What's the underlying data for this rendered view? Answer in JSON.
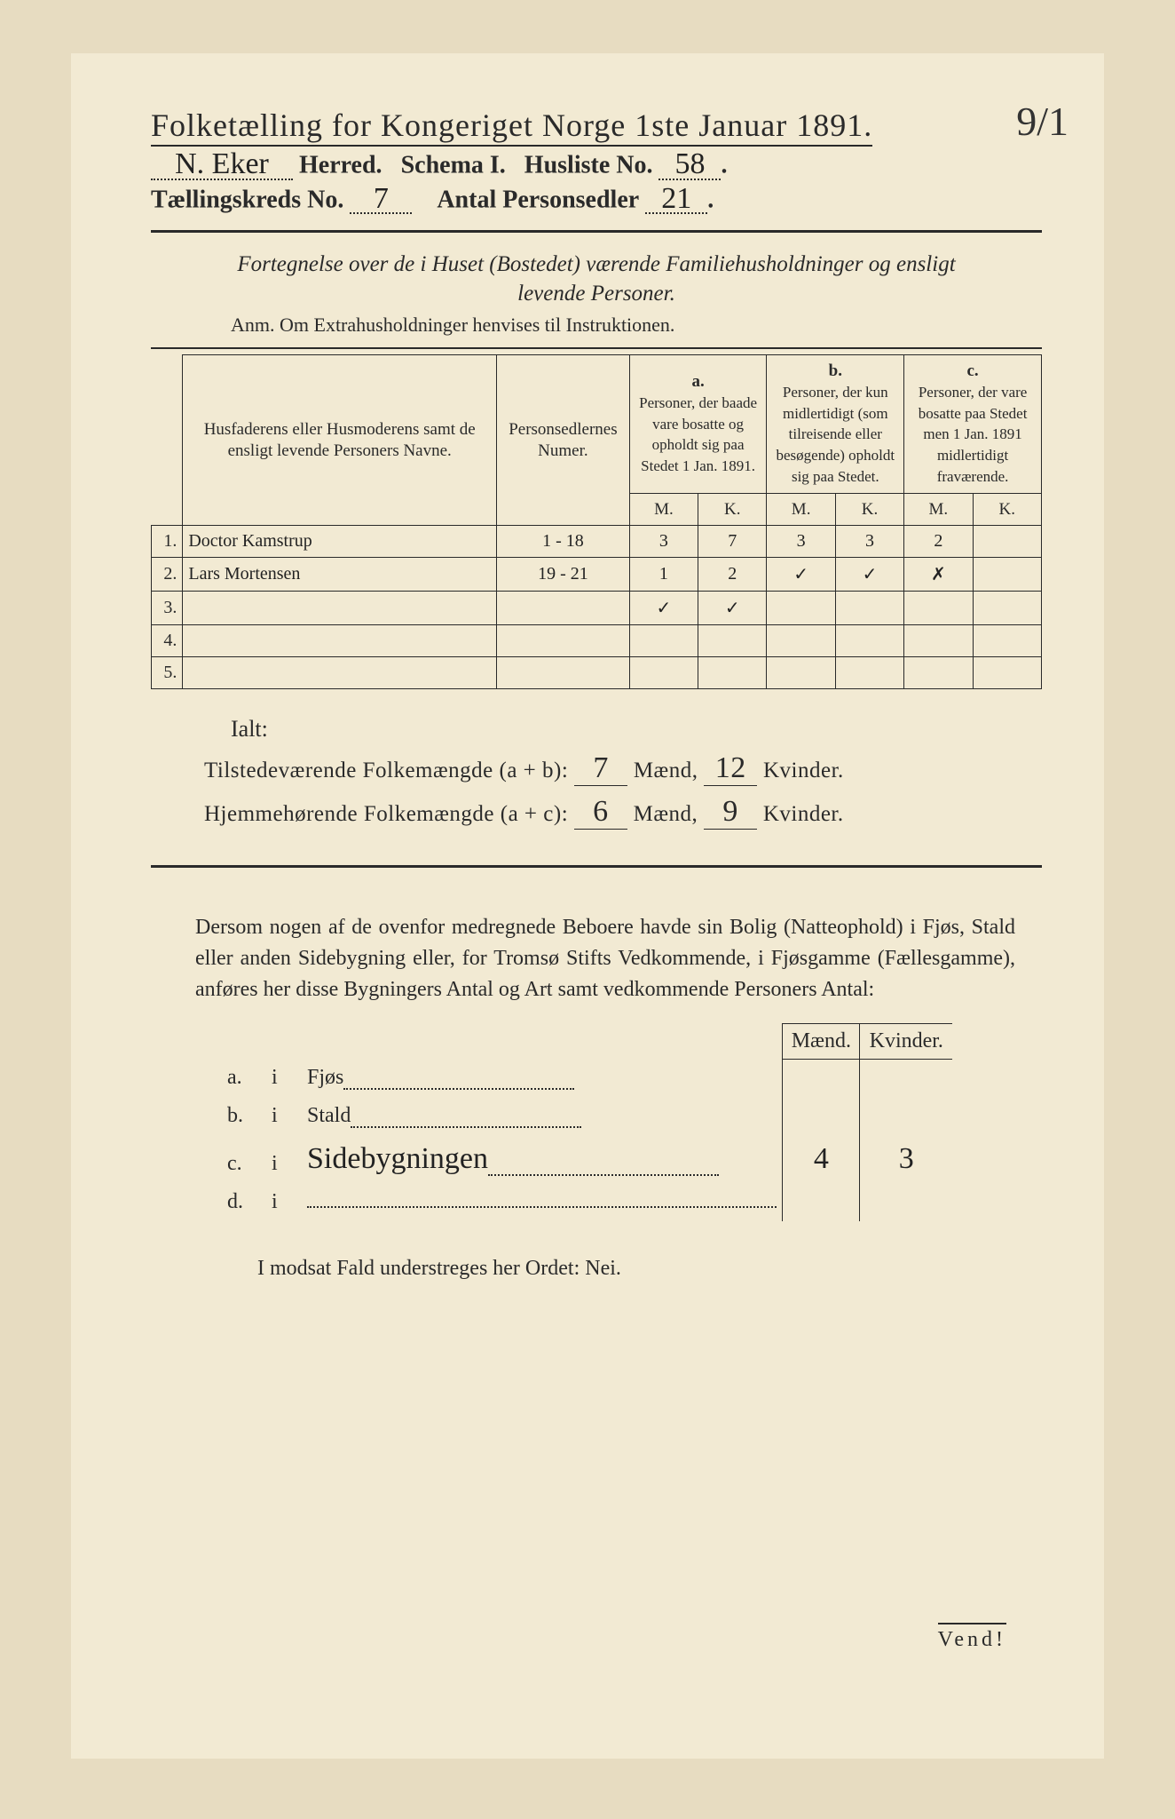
{
  "page": {
    "background_outer": "#e7dcc1",
    "background_inner": "#f2ead3",
    "text_color": "#2a2a2a"
  },
  "header": {
    "title": "Folketælling for Kongeriget Norge 1ste Januar 1891.",
    "top_right_mark": "9/1",
    "herred_value": "N. Eker",
    "herred_label": "Herred.",
    "schema_label": "Schema I.",
    "husliste_label": "Husliste No.",
    "husliste_value": "58",
    "kreds_label": "Tællingskreds No.",
    "kreds_value": "7",
    "personsedler_label": "Antal Personsedler",
    "personsedler_value": "21"
  },
  "subhead": {
    "line1": "Fortegnelse over de i Huset (Bostedet) værende Familiehusholdninger og ensligt",
    "line2": "levende Personer.",
    "anm": "Anm. Om Extrahusholdninger henvises til Instruktionen."
  },
  "table": {
    "headers": {
      "names": "Husfaderens eller Husmoderens samt de ensligt levende Personers Navne.",
      "numer": "Personsedlernes Numer.",
      "a_label": "a.",
      "a_text": "Personer, der baade vare bosatte og opholdt sig paa Stedet 1 Jan. 1891.",
      "b_label": "b.",
      "b_text": "Personer, der kun midlertidigt (som tilreisende eller besøgende) opholdt sig paa Stedet.",
      "c_label": "c.",
      "c_text": "Personer, der vare bosatte paa Stedet men 1 Jan. 1891 midlertidigt fraværende.",
      "m": "M.",
      "k": "K."
    },
    "rows": [
      {
        "n": "1.",
        "name": "Doctor Kamstrup",
        "numer": "1 - 18",
        "a_m": "3",
        "a_k": "7",
        "b_m": "3",
        "b_k": "3",
        "c_m": "2",
        "c_k": ""
      },
      {
        "n": "2.",
        "name": "Lars Mortensen",
        "numer": "19 - 21",
        "a_m": "1",
        "a_k": "2",
        "b_m": "✓",
        "b_k": "✓",
        "c_m": "✗",
        "c_k": ""
      },
      {
        "n": "3.",
        "name": "",
        "numer": "",
        "a_m": "✓",
        "a_k": "✓",
        "b_m": "",
        "b_k": "",
        "c_m": "",
        "c_k": ""
      },
      {
        "n": "4.",
        "name": "",
        "numer": "",
        "a_m": "",
        "a_k": "",
        "b_m": "",
        "b_k": "",
        "c_m": "",
        "c_k": ""
      },
      {
        "n": "5.",
        "name": "",
        "numer": "",
        "a_m": "",
        "a_k": "",
        "b_m": "",
        "b_k": "",
        "c_m": "",
        "c_k": ""
      }
    ]
  },
  "summary": {
    "ialt": "Ialt:",
    "line1_prefix": "Tilstedeværende Folkemængde (a + b):",
    "line1_m": "7",
    "line1_mlabel": "Mænd,",
    "line1_k": "12",
    "line1_klabel": "Kvinder.",
    "line2_prefix": "Hjemmehørende Folkemængde (a + c):",
    "line2_m": "6",
    "line2_mlabel": "Mænd,",
    "line2_k": "9",
    "line2_klabel": "Kvinder."
  },
  "buildings": {
    "para": "Dersom nogen af de ovenfor medregnede Beboere havde sin Bolig (Natteophold) i Fjøs, Stald eller anden Sidebygning eller, for Tromsø Stifts Vedkommende, i Fjøsgamme (Fællesgamme), anføres her disse Bygningers Antal og Art samt vedkommende Personers Antal:",
    "col_m": "Mænd.",
    "col_k": "Kvinder.",
    "rows": [
      {
        "letter": "a.",
        "i": "i",
        "label": "Fjøs",
        "m": "",
        "k": ""
      },
      {
        "letter": "b.",
        "i": "i",
        "label": "Stald",
        "m": "",
        "k": ""
      },
      {
        "letter": "c.",
        "i": "i",
        "label": "Sidebygningen",
        "m": "4",
        "k": "3"
      },
      {
        "letter": "d.",
        "i": "i",
        "label": "",
        "m": "",
        "k": ""
      }
    ]
  },
  "footer": {
    "nei": "I modsat Fald understreges her Ordet: Nei.",
    "vend": "Vend!"
  }
}
